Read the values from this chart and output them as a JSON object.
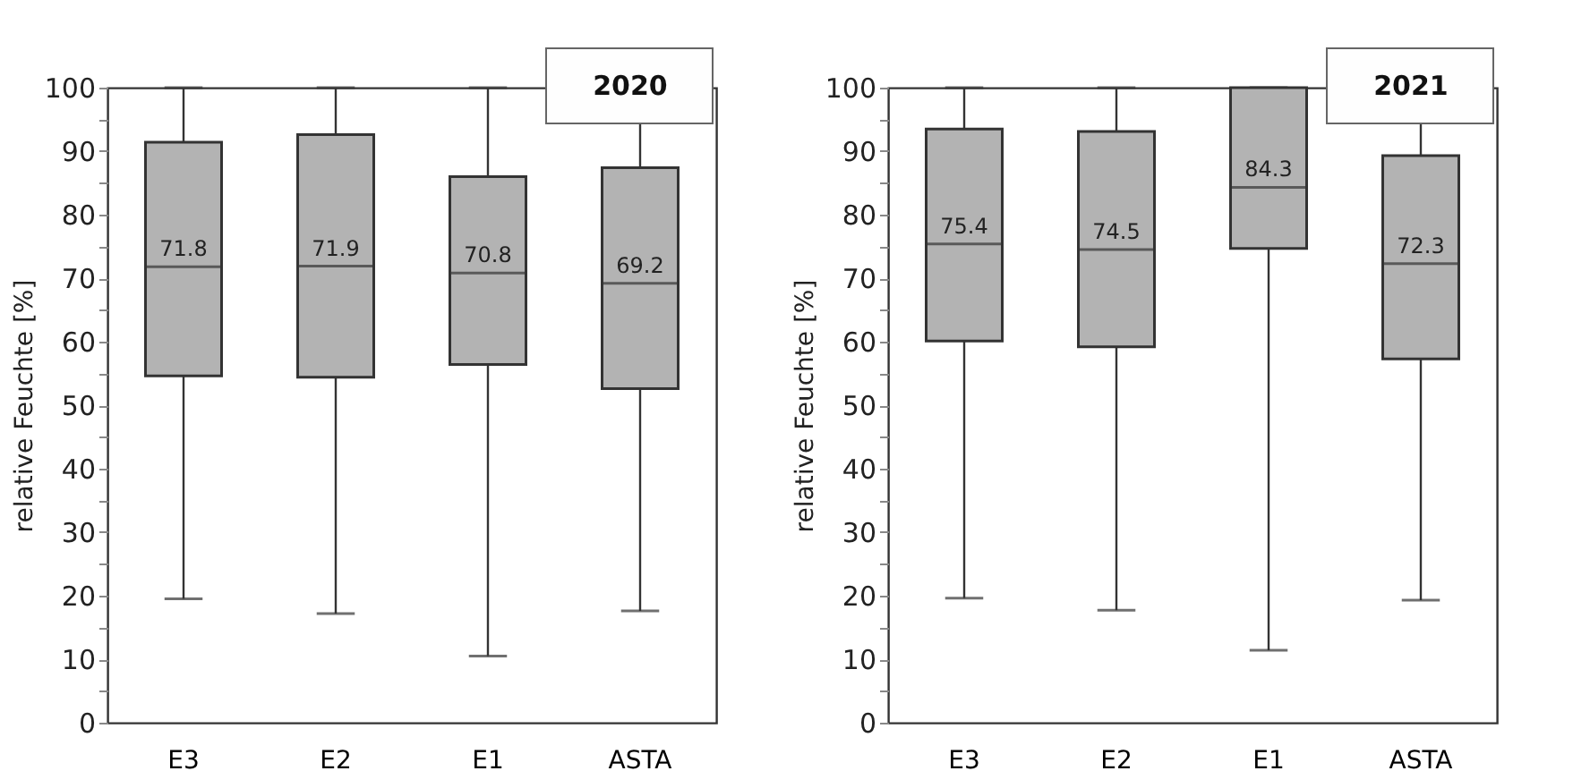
{
  "chart_data": [
    {
      "type": "box",
      "title": "2020",
      "ylabel": "relative Feuchte [%]",
      "categories": [
        "E3",
        "E2",
        "E1",
        "ASTA"
      ],
      "series": [
        {
          "color": "#b3b3b3",
          "boxes": [
            {
              "low": 19.5,
              "q1": 54.6,
              "median": 71.8,
              "q3": 91.4,
              "high": 100
            },
            {
              "low": 17.2,
              "q1": 54.4,
              "median": 71.9,
              "q3": 92.6,
              "high": 100
            },
            {
              "low": 10.5,
              "q1": 56.4,
              "median": 70.8,
              "q3": 86.0,
              "high": 100
            },
            {
              "low": 17.6,
              "q1": 52.6,
              "median": 69.2,
              "q3": 87.4,
              "high": 100
            }
          ]
        }
      ],
      "annotations": [
        {
          "text": "71.8",
          "x": "E3",
          "y": 71.8
        },
        {
          "text": "71.9",
          "x": "E2",
          "y": 71.9
        },
        {
          "text": "70.8",
          "x": "E1",
          "y": 70.8
        },
        {
          "text": "69.2",
          "x": "ASTA",
          "y": 69.2
        }
      ],
      "ylim": [
        0,
        100
      ],
      "yticks": [
        0,
        {
          "value": 5,
          "label": null
        },
        10,
        {
          "value": 15,
          "label": null
        },
        20,
        {
          "value": 25,
          "label": null
        },
        30,
        {
          "value": 35,
          "label": null
        },
        40,
        {
          "value": 45,
          "label": null
        },
        50,
        {
          "value": 55,
          "label": null
        },
        60,
        {
          "value": 65,
          "label": null
        },
        70,
        {
          "value": 75,
          "label": null
        },
        80,
        {
          "value": 85,
          "label": null
        },
        90,
        {
          "value": 95,
          "label": null
        },
        100
      ],
      "grid": false
    },
    {
      "type": "box",
      "title": "2021",
      "ylabel": "relative Feuchte [%]",
      "categories": [
        "E3",
        "E2",
        "E1",
        "ASTA"
      ],
      "series": [
        {
          "color": "#b3b3b3",
          "boxes": [
            {
              "low": 19.6,
              "q1": 60.1,
              "median": 75.4,
              "q3": 93.5,
              "high": 100
            },
            {
              "low": 17.7,
              "q1": 59.2,
              "median": 74.5,
              "q3": 93.1,
              "high": 100
            },
            {
              "low": 11.4,
              "q1": 74.7,
              "median": 84.3,
              "q3": 100,
              "high": 100
            },
            {
              "low": 19.3,
              "q1": 57.3,
              "median": 72.3,
              "q3": 89.3,
              "high": 100
            }
          ]
        }
      ],
      "annotations": [
        {
          "text": "75.4",
          "x": "E3",
          "y": 75.4
        },
        {
          "text": "74.5",
          "x": "E2",
          "y": 74.5
        },
        {
          "text": "84.3",
          "x": "E1",
          "y": 84.3
        },
        {
          "text": "72.3",
          "x": "ASTA",
          "y": 72.3
        }
      ],
      "ylim": [
        0,
        100
      ],
      "yticks": [
        0,
        {
          "value": 5,
          "label": null
        },
        10,
        {
          "value": 15,
          "label": null
        },
        20,
        {
          "value": 25,
          "label": null
        },
        30,
        {
          "value": 35,
          "label": null
        },
        40,
        {
          "value": 45,
          "label": null
        },
        50,
        {
          "value": 55,
          "label": null
        },
        60,
        {
          "value": 65,
          "label": null
        },
        70,
        {
          "value": 75,
          "label": null
        },
        80,
        {
          "value": 85,
          "label": null
        },
        90,
        {
          "value": 95,
          "label": null
        },
        100
      ],
      "grid": false
    }
  ]
}
